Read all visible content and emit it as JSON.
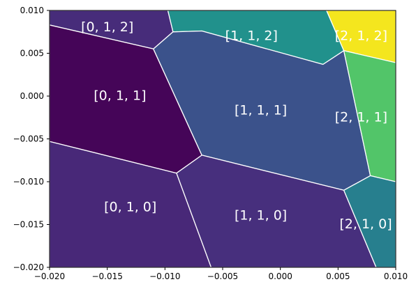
{
  "chart_data": {
    "type": "heatmap",
    "title": "",
    "xlabel": "",
    "ylabel": "",
    "xlim": [
      -0.02,
      0.01
    ],
    "ylim": [
      -0.02,
      0.01
    ],
    "xticks": [
      -0.02,
      -0.015,
      -0.01,
      -0.005,
      0.0,
      0.005,
      0.01
    ],
    "xtick_labels": [
      "−0.020",
      "−0.015",
      "−0.010",
      "−0.005",
      "0.000",
      "0.005",
      "0.010"
    ],
    "yticks": [
      -0.02,
      -0.015,
      -0.01,
      -0.005,
      0.0,
      0.005,
      0.01
    ],
    "ytick_labels": [
      "−0.020",
      "−0.015",
      "−0.010",
      "−0.005",
      "0.000",
      "0.005",
      "0.010"
    ],
    "colormap": "viridis",
    "grid": false,
    "regions": [
      {
        "label": "[0, 1, 2]",
        "color": "#472c7a",
        "label_pos": [
          -0.015,
          0.008
        ],
        "polygon": [
          [
            -0.02,
            0.01
          ],
          [
            -0.00975,
            0.01
          ],
          [
            -0.0093,
            0.0075
          ],
          [
            -0.011,
            0.0055
          ],
          [
            -0.02,
            0.0083
          ]
        ]
      },
      {
        "label": "[1, 1, 2]",
        "color": "#21918c",
        "label_pos": [
          -0.0025,
          0.007
        ],
        "polygon": [
          [
            -0.00975,
            0.01
          ],
          [
            0.004,
            0.01
          ],
          [
            0.0055,
            0.0053
          ],
          [
            0.0037,
            0.0037
          ],
          [
            -0.0068,
            0.0076
          ],
          [
            -0.0093,
            0.0075
          ]
        ]
      },
      {
        "label": "[2, 1, 2]",
        "color": "#f4e61e",
        "label_pos": [
          0.007,
          0.007
        ],
        "polygon": [
          [
            0.004,
            0.01
          ],
          [
            0.01,
            0.01
          ],
          [
            0.01,
            0.0039
          ],
          [
            0.0055,
            0.0053
          ]
        ]
      },
      {
        "label": "[0, 1, 1]",
        "color": "#450558",
        "label_pos": [
          -0.0139,
          0.0
        ],
        "polygon": [
          [
            -0.02,
            0.0083
          ],
          [
            -0.011,
            0.0055
          ],
          [
            -0.0068,
            -0.0069
          ],
          [
            -0.009,
            -0.009
          ],
          [
            -0.02,
            -0.0053
          ]
        ]
      },
      {
        "label": "[1, 1, 1]",
        "color": "#3b528b",
        "label_pos": [
          -0.0017,
          -0.0017
        ],
        "polygon": [
          [
            -0.011,
            0.0055
          ],
          [
            -0.0093,
            0.0075
          ],
          [
            -0.0068,
            0.0076
          ],
          [
            0.0037,
            0.0037
          ],
          [
            0.0055,
            0.0053
          ],
          [
            0.0078,
            -0.0093
          ],
          [
            0.0055,
            -0.011
          ],
          [
            -0.0068,
            -0.0069
          ]
        ]
      },
      {
        "label": "[2, 1, 1]",
        "color": "#52c569",
        "label_pos": [
          0.007,
          -0.0025
        ],
        "polygon": [
          [
            0.0055,
            0.0053
          ],
          [
            0.01,
            0.0039
          ],
          [
            0.01,
            -0.01
          ],
          [
            0.0078,
            -0.0093
          ]
        ]
      },
      {
        "label": "[0, 1, 0]",
        "color": "#482878",
        "label_pos": [
          -0.013,
          -0.013
        ],
        "polygon": [
          [
            -0.02,
            -0.0053
          ],
          [
            -0.009,
            -0.009
          ],
          [
            -0.006,
            -0.02
          ],
          [
            -0.02,
            -0.02
          ]
        ]
      },
      {
        "label": "[1, 1, 0]",
        "color": "#472f7d",
        "label_pos": [
          -0.0017,
          -0.014
        ],
        "polygon": [
          [
            -0.009,
            -0.009
          ],
          [
            -0.0068,
            -0.0069
          ],
          [
            0.0055,
            -0.011
          ],
          [
            0.0083,
            -0.02
          ],
          [
            -0.006,
            -0.02
          ]
        ]
      },
      {
        "label": "[2, 1, 0]",
        "color": "#277f8e",
        "label_pos": [
          0.0074,
          -0.015
        ],
        "polygon": [
          [
            0.0055,
            -0.011
          ],
          [
            0.0078,
            -0.0093
          ],
          [
            0.01,
            -0.01
          ],
          [
            0.01,
            -0.02
          ],
          [
            0.0083,
            -0.02
          ]
        ]
      }
    ]
  }
}
